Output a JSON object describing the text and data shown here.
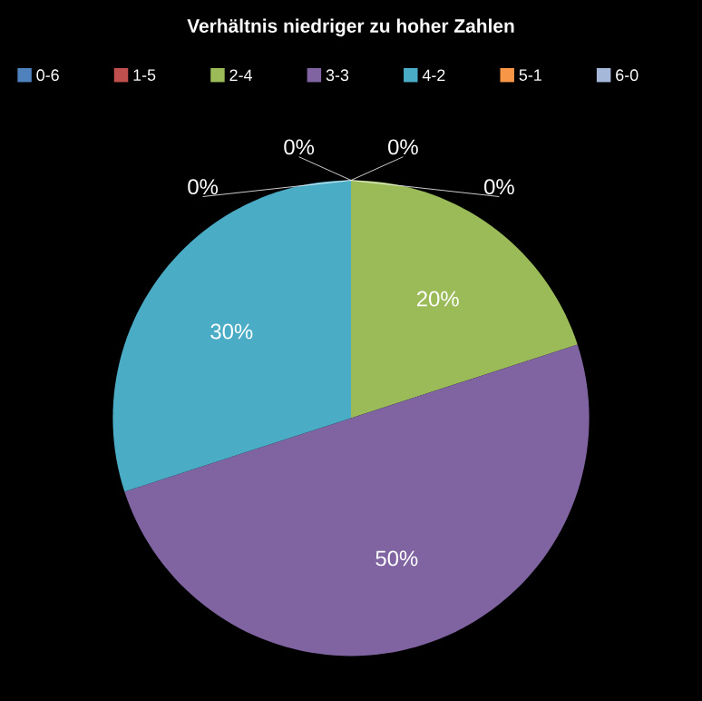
{
  "chart_data": {
    "type": "pie",
    "title": "Verhältnis niedriger zu hoher Zahlen",
    "categories": [
      "0-6",
      "1-5",
      "2-4",
      "3-3",
      "4-2",
      "5-1",
      "6-0"
    ],
    "values": [
      0,
      0,
      20,
      50,
      30,
      0,
      0
    ],
    "value_labels": [
      "0%",
      "0%",
      "20%",
      "50%",
      "30%",
      "0%",
      "0%"
    ],
    "colors": [
      "#4f81bd",
      "#c0504d",
      "#9bbb59",
      "#8064a2",
      "#4bacc6",
      "#f79646",
      "#a5b8d9"
    ],
    "legend": "top"
  }
}
